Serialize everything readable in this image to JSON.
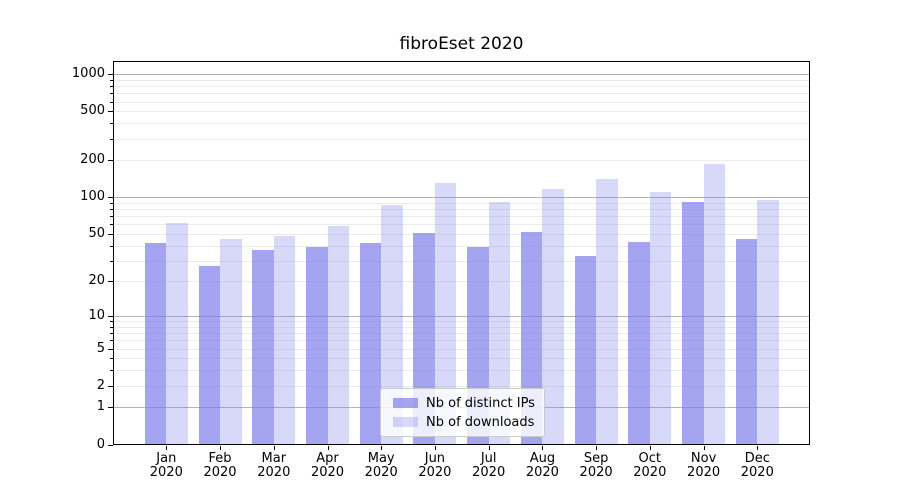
{
  "figure": {
    "title": "fibroEset 2020"
  },
  "chart_data": {
    "type": "bar",
    "title": "fibroEset 2020",
    "subtitle": "",
    "categories": [
      "Jan",
      "Feb",
      "Mar",
      "Apr",
      "May",
      "Jun",
      "Jul",
      "Aug",
      "Sep",
      "Oct",
      "Nov",
      "Dec"
    ],
    "x_year_label": "2020",
    "series": [
      {
        "name": "Nb of distinct IPs",
        "color": "#7d7de9",
        "alpha": 0.7,
        "blended_color": "#a4a4f0",
        "values": [
          42,
          27,
          37,
          39,
          42,
          51,
          39,
          52,
          33,
          43,
          92,
          45
        ]
      },
      {
        "name": "Nb of downloads",
        "color": "#7d7de9",
        "alpha": 0.3,
        "blended_color": "#d8d8f8",
        "values": [
          61,
          45,
          48,
          58,
          86,
          130,
          91,
          116,
          140,
          111,
          185,
          95
        ]
      }
    ],
    "y_scale": "log10(1+x)",
    "y_ticks": [
      0,
      1,
      2,
      5,
      10,
      20,
      50,
      100,
      200,
      500,
      1000
    ],
    "y_minor_ticks": [
      3,
      4,
      6,
      7,
      8,
      9,
      30,
      40,
      60,
      70,
      80,
      90,
      300,
      400,
      600,
      700,
      800,
      900
    ],
    "y_major_gridlines": [
      1,
      10,
      100,
      1000
    ],
    "ylim": [
      0,
      1280
    ],
    "xlabel": "",
    "ylabel": "",
    "grid": true,
    "legend_position": "lower center",
    "colors": {
      "major_grid": "#b4b4b4",
      "minor_grid": "#ebebeb",
      "axis": "#000000",
      "background": "#ffffff"
    }
  }
}
